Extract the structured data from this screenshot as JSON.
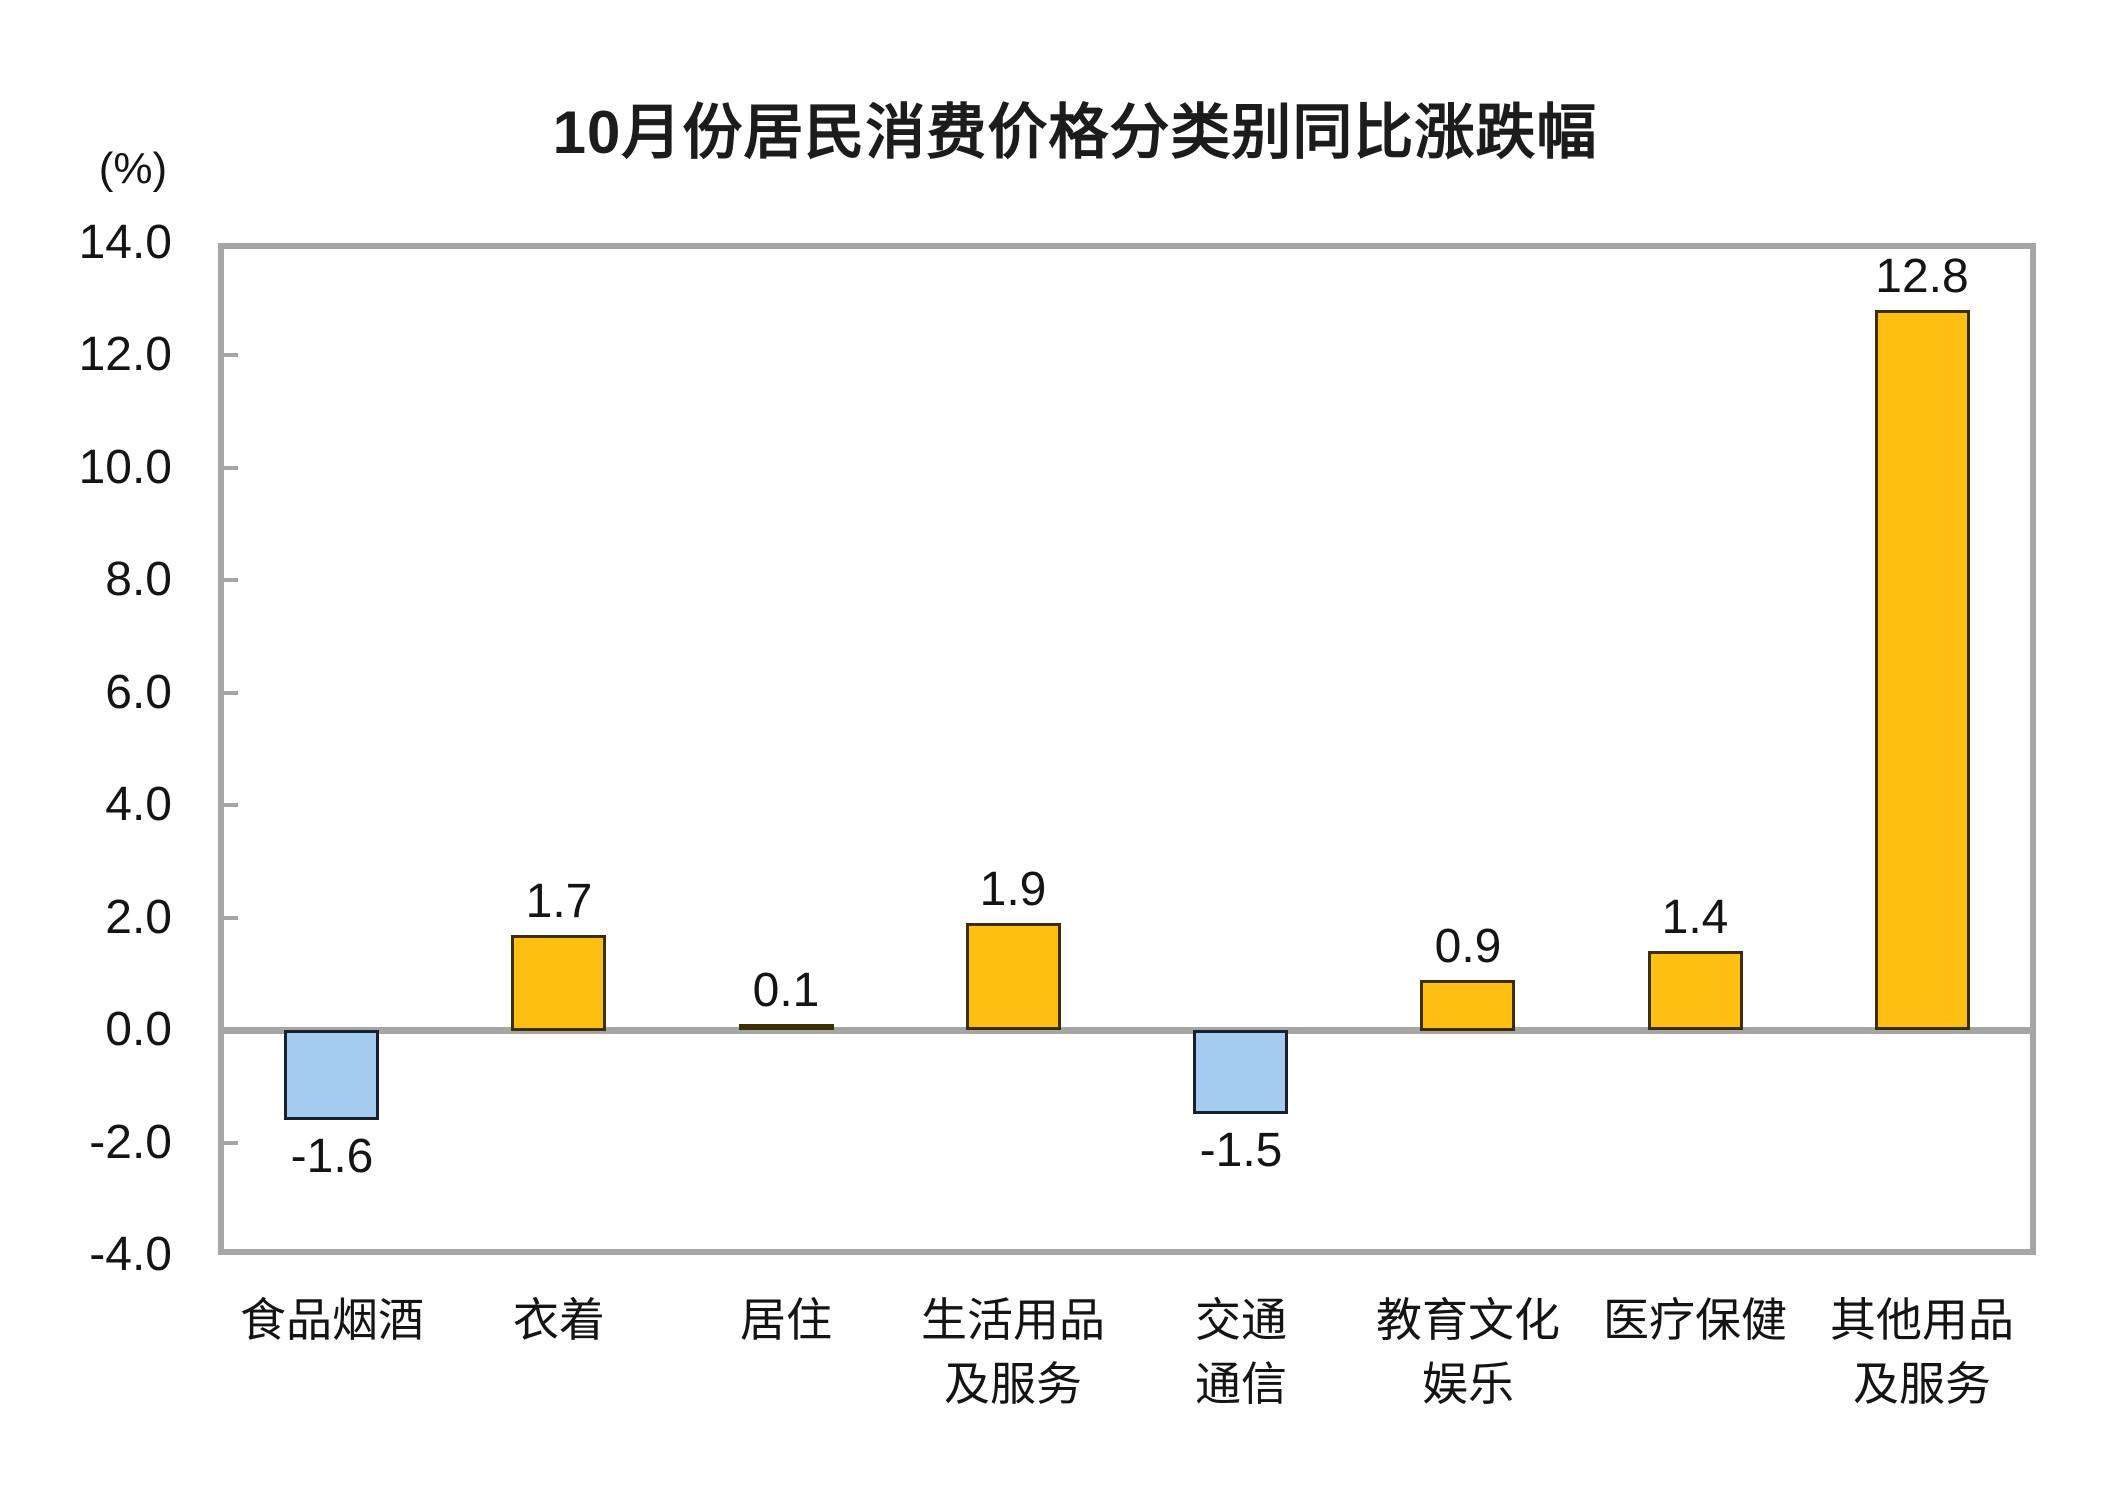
{
  "chart_data": {
    "type": "bar",
    "title": "10月份居民消费价格分类别同比涨跌幅",
    "unit_label": "(%)",
    "categories": [
      "食品烟酒",
      "衣着",
      "居住",
      "生活用品\n及服务",
      "交通\n通信",
      "教育文化\n娱乐",
      "医疗保健",
      "其他用品\n及服务"
    ],
    "values": [
      -1.6,
      1.7,
      0.1,
      1.9,
      -1.5,
      0.9,
      1.4,
      12.8
    ],
    "value_labels": [
      "-1.6",
      "1.7",
      "0.1",
      "1.9",
      "-1.5",
      "0.9",
      "1.4",
      "12.8"
    ],
    "ylim": [
      -4.0,
      14.0
    ],
    "ytick_step": 2.0,
    "yticks": [
      14.0,
      12.0,
      10.0,
      8.0,
      6.0,
      4.0,
      2.0,
      0.0,
      -2.0,
      -4.0
    ],
    "ytick_labels": [
      "14.0",
      "12.0",
      "10.0",
      "8.0",
      "6.0",
      "4.0",
      "2.0",
      "0.0",
      "-2.0",
      "-4.0"
    ],
    "grid": false,
    "legend": "none",
    "xlabel": "",
    "ylabel": "(%)",
    "colors": {
      "positive_fill": "#FCBF12",
      "positive_border": "#3B2E00",
      "negative_fill": "#A5CBEE",
      "negative_border": "#16202F",
      "axis_line": "#A6A6A6",
      "text": "#141414"
    }
  }
}
